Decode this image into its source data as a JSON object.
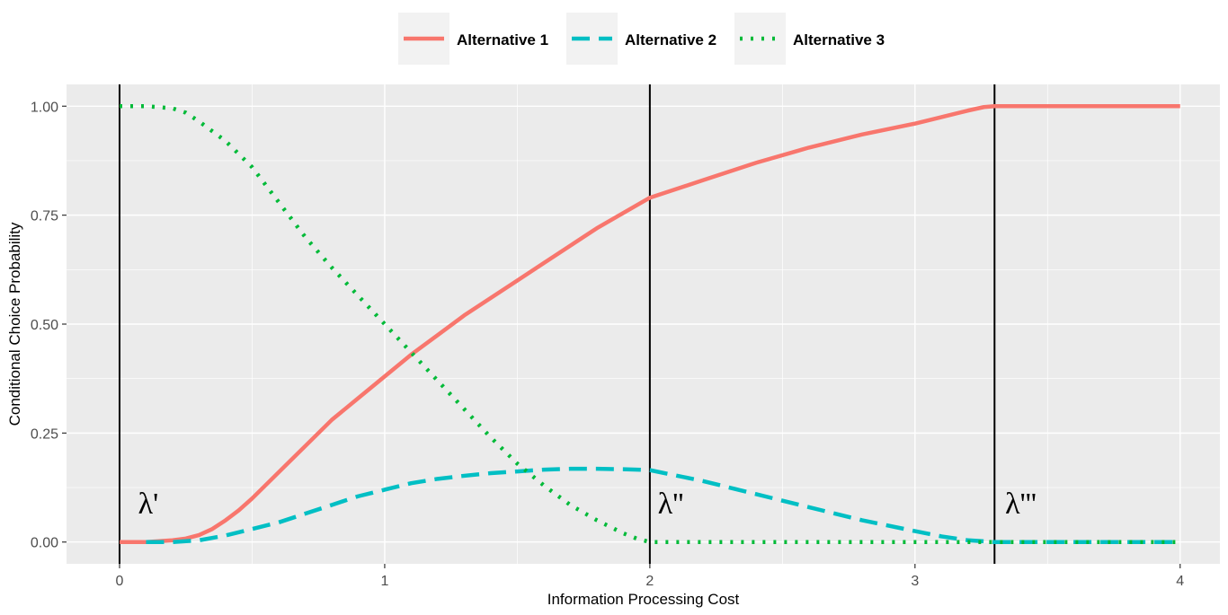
{
  "chart_data": {
    "type": "line",
    "xlabel": "Information Processing Cost",
    "ylabel": "Conditional Choice Probability",
    "xlim": [
      -0.2,
      4.15
    ],
    "ylim": [
      -0.05,
      1.05
    ],
    "x_ticks": [
      0,
      1,
      2,
      3,
      4
    ],
    "x_tick_labels": [
      "0",
      "1",
      "2",
      "3",
      "4"
    ],
    "y_ticks": [
      0,
      0.25,
      0.5,
      0.75,
      1.0
    ],
    "y_tick_labels": [
      "0.00",
      "0.25",
      "0.50",
      "0.75",
      "1.00"
    ],
    "grid": true,
    "legend_position": "top",
    "series": [
      {
        "name": "Alternative 1",
        "color": "#F8766D",
        "line_style": "solid",
        "x": [
          0,
          0.1,
          0.2,
          0.25,
          0.3,
          0.35,
          0.4,
          0.45,
          0.5,
          0.6,
          0.7,
          0.8,
          0.9,
          1.0,
          1.1,
          1.2,
          1.3,
          1.4,
          1.5,
          1.6,
          1.7,
          1.8,
          1.9,
          2.0,
          2.2,
          2.4,
          2.6,
          2.8,
          3.0,
          3.1,
          3.2,
          3.26,
          3.3,
          3.5,
          4.0
        ],
        "y": [
          0,
          0,
          0.004,
          0.008,
          0.016,
          0.03,
          0.05,
          0.073,
          0.1,
          0.16,
          0.22,
          0.28,
          0.33,
          0.38,
          0.43,
          0.475,
          0.52,
          0.56,
          0.6,
          0.64,
          0.68,
          0.72,
          0.755,
          0.79,
          0.83,
          0.87,
          0.905,
          0.935,
          0.96,
          0.975,
          0.99,
          0.998,
          1.0,
          1.0,
          1.0
        ]
      },
      {
        "name": "Alternative 2",
        "color": "#00BFC4",
        "line_style": "dashed",
        "x": [
          0.1,
          0.2,
          0.3,
          0.4,
          0.5,
          0.6,
          0.7,
          0.8,
          0.9,
          1.0,
          1.1,
          1.2,
          1.3,
          1.4,
          1.5,
          1.6,
          1.7,
          1.8,
          1.9,
          2.0,
          2.2,
          2.4,
          2.6,
          2.8,
          3.0,
          3.1,
          3.2,
          3.3,
          3.5,
          4.0
        ],
        "y": [
          0,
          0,
          0.004,
          0.015,
          0.03,
          0.045,
          0.065,
          0.085,
          0.105,
          0.12,
          0.135,
          0.145,
          0.152,
          0.158,
          0.162,
          0.166,
          0.168,
          0.168,
          0.167,
          0.165,
          0.14,
          0.11,
          0.08,
          0.05,
          0.025,
          0.013,
          0.004,
          0,
          0,
          0
        ]
      },
      {
        "name": "Alternative 3",
        "color": "#00BA38",
        "line_style": "dotted",
        "x": [
          0,
          0.1,
          0.2,
          0.25,
          0.3,
          0.4,
          0.5,
          0.6,
          0.7,
          0.8,
          0.9,
          1.0,
          1.1,
          1.2,
          1.3,
          1.4,
          1.5,
          1.6,
          1.7,
          1.8,
          1.9,
          1.95,
          2.0,
          2.5,
          3.0,
          3.5,
          4.0
        ],
        "y": [
          1.0,
          1.0,
          0.995,
          0.985,
          0.965,
          0.92,
          0.86,
          0.78,
          0.7,
          0.63,
          0.565,
          0.5,
          0.435,
          0.37,
          0.305,
          0.24,
          0.18,
          0.13,
          0.085,
          0.05,
          0.02,
          0.008,
          0.0,
          0.0,
          0.0,
          0.0,
          0.0
        ]
      }
    ],
    "vlines": [
      0,
      2.0,
      3.3
    ],
    "annotations": [
      {
        "text": "λ'",
        "x": 0.07,
        "y": 0.065
      },
      {
        "text": "λ''",
        "x": 2.03,
        "y": 0.065
      },
      {
        "text": "λ'''",
        "x": 3.34,
        "y": 0.065
      }
    ]
  }
}
